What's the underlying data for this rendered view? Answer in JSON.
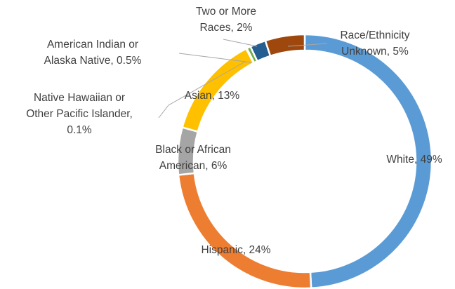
{
  "chart_data": {
    "type": "pie",
    "variant": "doughnut",
    "title": "",
    "slices": [
      {
        "key": "white",
        "label_lines": [
          "White, 49%"
        ],
        "value": 49,
        "color": "#5b9bd5"
      },
      {
        "key": "hispanic",
        "label_lines": [
          "Hispanic, 24%"
        ],
        "value": 24,
        "color": "#ed7d31"
      },
      {
        "key": "black",
        "label_lines": [
          "Black or African",
          "American, 6%"
        ],
        "value": 6,
        "color": "#a5a5a5"
      },
      {
        "key": "asian",
        "label_lines": [
          "Asian, 13%"
        ],
        "value": 13,
        "color": "#ffc000"
      },
      {
        "key": "nhpi",
        "label_lines": [
          "Native Hawaiian or",
          "Other Pacific Islander,",
          "0.1%"
        ],
        "value": 0.1,
        "color": "#4472c4"
      },
      {
        "key": "aian",
        "label_lines": [
          "American Indian or",
          "Alaska Native, 0.5%"
        ],
        "value": 0.5,
        "color": "#70ad47"
      },
      {
        "key": "two",
        "label_lines": [
          "Two or More",
          "Races, 2%"
        ],
        "value": 2,
        "color": "#255e91"
      },
      {
        "key": "unknown",
        "label_lines": [
          "Race/Ethnicity",
          "Unknown, 5%"
        ],
        "value": 5,
        "color": "#9e480e"
      }
    ],
    "legend": "none"
  }
}
